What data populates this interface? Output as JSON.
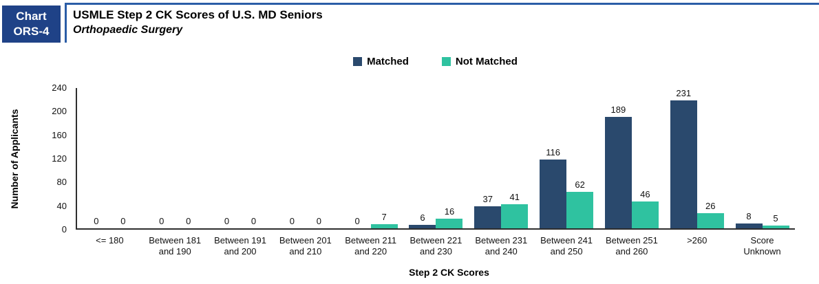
{
  "header": {
    "badge": [
      "Chart",
      "ORS-4"
    ],
    "title": "USMLE Step 2 CK Scores of U.S. MD Seniors",
    "subtitle": "Orthopaedic Surgery"
  },
  "colors": {
    "badge_bg": "#1F4287",
    "rule_blue": "#2B5DA7",
    "matched": "#2A496D",
    "not_matched": "#2FC2A0"
  },
  "chart_data": {
    "type": "bar",
    "title": "USMLE Step 2 CK Scores of U.S. MD Seniors",
    "subtitle": "Orthopaedic Surgery",
    "categories": [
      "<= 180",
      "Between 181\nand 190",
      "Between 191\nand 200",
      "Between 201\nand 210",
      "Between 211\nand 220",
      "Between 221\nand 230",
      "Between 231\nand 240",
      "Between 241\nand 250",
      "Between 251\nand 260",
      ">260",
      "Score\nUnknown"
    ],
    "series": [
      {
        "name": "Matched",
        "color": "#2A496D",
        "values": [
          0,
          0,
          0,
          0,
          0,
          6,
          37,
          116,
          189,
          231,
          8
        ]
      },
      {
        "name": "Not Matched",
        "color": "#2FC2A0",
        "values": [
          0,
          0,
          0,
          0,
          7,
          16,
          41,
          62,
          46,
          26,
          5
        ]
      }
    ],
    "xlabel": "Step 2 CK Scores",
    "ylabel": "Number of Applicants",
    "ylim": [
      0,
      240
    ],
    "yticks": [
      0,
      40,
      80,
      120,
      160,
      200,
      240
    ],
    "grid": false,
    "legend_position": "top",
    "bar_value_labels": true
  }
}
